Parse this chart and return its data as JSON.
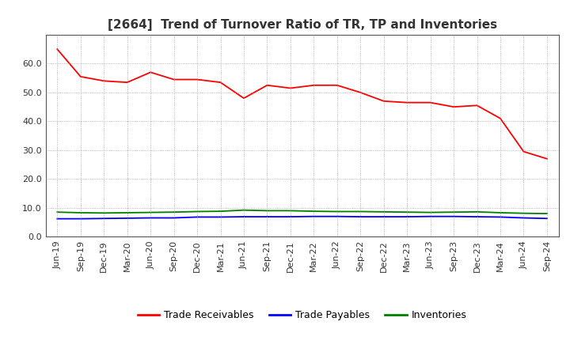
{
  "title": "[2664]  Trend of Turnover Ratio of TR, TP and Inventories",
  "x_labels": [
    "Jun-19",
    "Sep-19",
    "Dec-19",
    "Mar-20",
    "Jun-20",
    "Sep-20",
    "Dec-20",
    "Mar-21",
    "Jun-21",
    "Sep-21",
    "Dec-21",
    "Mar-22",
    "Jun-22",
    "Sep-22",
    "Dec-22",
    "Mar-23",
    "Jun-23",
    "Sep-23",
    "Dec-23",
    "Mar-24",
    "Jun-24",
    "Sep-24"
  ],
  "trade_receivables": [
    65.0,
    55.5,
    54.0,
    53.5,
    57.0,
    54.5,
    54.5,
    53.5,
    48.0,
    52.5,
    51.5,
    52.5,
    52.5,
    50.0,
    47.0,
    46.5,
    46.5,
    45.0,
    45.5,
    41.0,
    29.5,
    27.0
  ],
  "trade_payables": [
    6.2,
    6.2,
    6.3,
    6.4,
    6.5,
    6.5,
    6.8,
    6.8,
    6.9,
    6.9,
    6.9,
    7.0,
    7.0,
    6.9,
    6.9,
    6.9,
    7.0,
    7.0,
    6.9,
    6.8,
    6.5,
    6.3
  ],
  "inventories": [
    8.5,
    8.3,
    8.2,
    8.3,
    8.4,
    8.5,
    8.7,
    8.8,
    9.2,
    9.0,
    9.0,
    8.8,
    8.7,
    8.7,
    8.6,
    8.5,
    8.4,
    8.5,
    8.6,
    8.3,
    8.1,
    8.0
  ],
  "ylim": [
    0.0,
    70.0
  ],
  "yticks": [
    0.0,
    10.0,
    20.0,
    30.0,
    40.0,
    50.0,
    60.0
  ],
  "color_tr": "#FF0000",
  "color_tp": "#0000FF",
  "color_inv": "#008000",
  "legend_labels": [
    "Trade Receivables",
    "Trade Payables",
    "Inventories"
  ],
  "background_color": "#FFFFFF",
  "grid_color": "#999999",
  "title_fontsize": 11,
  "axis_fontsize": 8,
  "legend_fontsize": 9
}
